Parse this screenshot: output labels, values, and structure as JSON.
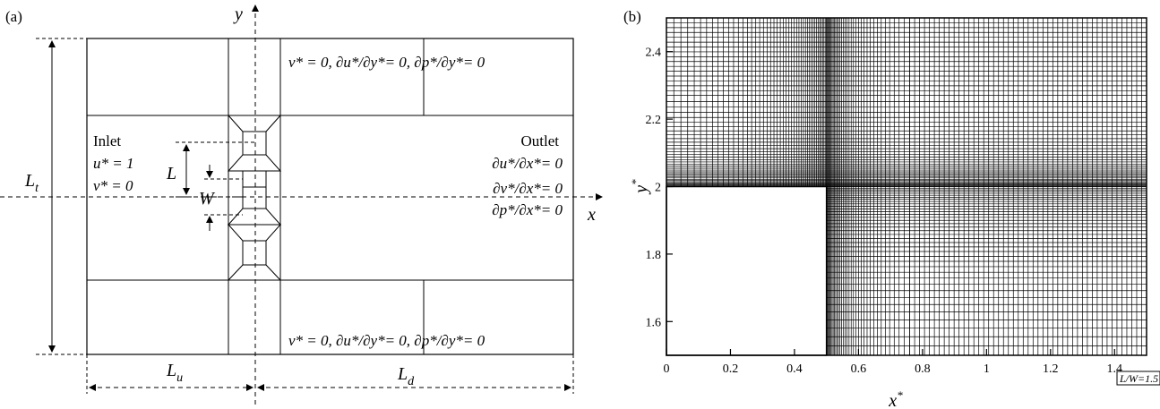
{
  "panel_a": {
    "label": "(a)",
    "axis_x": "x",
    "axis_y": "y",
    "dim_Lt": "L",
    "dim_Lt_sub": "t",
    "dim_L": "L",
    "dim_W": "W",
    "dim_Lu": "L",
    "dim_Lu_sub": "u",
    "dim_Ld": "L",
    "dim_Ld_sub": "d",
    "bc_top": "v* = 0, ∂u*/∂y*= 0, ∂p*/∂y*= 0",
    "bc_bottom": "v* = 0, ∂u*/∂y*= 0, ∂p*/∂y*= 0",
    "inlet": {
      "title": "Inlet",
      "line1": "u* = 1",
      "line2": "v* = 0"
    },
    "outlet": {
      "title": "Outlet",
      "line1": "∂u*/∂x*= 0",
      "line2": "∂v*/∂x*= 0",
      "line3": "∂p*/∂x*= 0"
    }
  },
  "panel_b": {
    "label": "(b)",
    "xlabel": "x*",
    "ylabel": "y*",
    "annotation": "L/W=1.5",
    "x_ticks": [
      "0",
      "0.2",
      "0.4",
      "0.6",
      "0.8",
      "1",
      "1.2",
      "1.4"
    ],
    "y_ticks": [
      "1.6",
      "1.8",
      "2",
      "2.2",
      "2.4"
    ]
  },
  "chart_data": {
    "type": "mesh",
    "xlabel": "x*",
    "ylabel": "y*",
    "xlim": [
      0,
      1.5
    ],
    "ylim": [
      1.5,
      2.5
    ],
    "x_ticks": [
      0,
      0.2,
      0.4,
      0.6,
      0.8,
      1,
      1.2,
      1.4
    ],
    "y_ticks": [
      1.6,
      1.8,
      2.0,
      2.2,
      2.4
    ],
    "solid_block": {
      "x": [
        0,
        0.5
      ],
      "y": [
        1.5,
        2.0
      ]
    },
    "annotation": "L/W=1.5"
  }
}
